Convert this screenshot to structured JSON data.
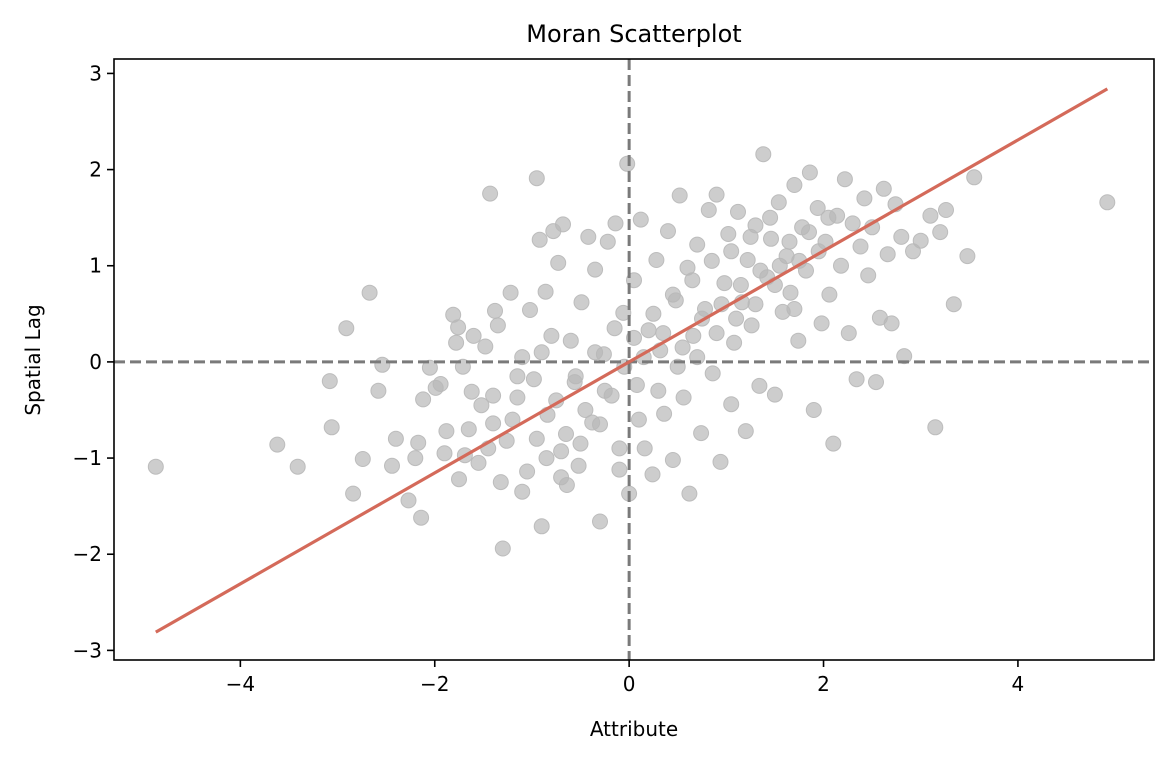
{
  "chart_data": {
    "type": "scatter",
    "title": "Moran Scatterplot",
    "xlabel": "Attribute",
    "ylabel": "Spatial Lag",
    "xlim": [
      -5.3,
      5.4
    ],
    "ylim": [
      -3.1,
      3.15
    ],
    "x_ticks": [
      -4,
      -2,
      0,
      2,
      4
    ],
    "y_ticks": [
      -3,
      -2,
      -1,
      0,
      1,
      2,
      3
    ],
    "x_tick_labels": [
      "−4",
      "−2",
      "0",
      "2",
      "4"
    ],
    "y_tick_labels": [
      "−3",
      "−2",
      "−1",
      "0",
      "1",
      "2",
      "3"
    ],
    "grid": false,
    "reference_lines": {
      "x": 0,
      "y": 0,
      "style": "dashed",
      "color": "#7a7a7a"
    },
    "fit_line": {
      "slope": 0.577,
      "intercept": 0.0,
      "x_range": [
        -4.87,
        4.92
      ],
      "color": "#d46a5a"
    },
    "point_color": "#b8b8b8",
    "points": [
      [
        -4.87,
        -1.09
      ],
      [
        -3.62,
        -0.86
      ],
      [
        -3.41,
        -1.09
      ],
      [
        -3.08,
        -0.2
      ],
      [
        -3.06,
        -0.68
      ],
      [
        -2.91,
        0.35
      ],
      [
        -2.84,
        -1.37
      ],
      [
        -2.74,
        -1.01
      ],
      [
        -2.67,
        0.72
      ],
      [
        -2.58,
        -0.3
      ],
      [
        -2.54,
        -0.03
      ],
      [
        -2.44,
        -1.08
      ],
      [
        -2.4,
        -0.8
      ],
      [
        -2.27,
        -1.44
      ],
      [
        -2.2,
        -1.0
      ],
      [
        -2.17,
        -0.84
      ],
      [
        -2.14,
        -1.62
      ],
      [
        -2.12,
        -0.39
      ],
      [
        -2.05,
        -0.06
      ],
      [
        -1.99,
        -0.27
      ],
      [
        -1.94,
        -0.23
      ],
      [
        -1.88,
        -0.72
      ],
      [
        -1.81,
        0.49
      ],
      [
        -1.78,
        0.2
      ],
      [
        -1.76,
        0.36
      ],
      [
        -1.71,
        -0.05
      ],
      [
        -1.69,
        -0.97
      ],
      [
        -1.62,
        -0.31
      ],
      [
        -1.6,
        0.27
      ],
      [
        -1.52,
        -0.45
      ],
      [
        -1.48,
        0.16
      ],
      [
        -1.43,
        1.75
      ],
      [
        -1.4,
        -0.64
      ],
      [
        -1.38,
        0.53
      ],
      [
        -1.35,
        0.38
      ],
      [
        -1.3,
        -1.94
      ],
      [
        -1.26,
        -0.82
      ],
      [
        -1.22,
        0.72
      ],
      [
        -1.15,
        -0.37
      ],
      [
        -1.1,
        0.05
      ],
      [
        -1.05,
        -1.14
      ],
      [
        -1.02,
        0.54
      ],
      [
        -0.98,
        -0.18
      ],
      [
        -0.95,
        1.91
      ],
      [
        -0.92,
        1.27
      ],
      [
        -0.9,
        -1.71
      ],
      [
        -0.86,
        0.73
      ],
      [
        -0.84,
        -0.55
      ],
      [
        -0.8,
        0.27
      ],
      [
        -0.78,
        1.36
      ],
      [
        -0.73,
        1.03
      ],
      [
        -0.7,
        -0.93
      ],
      [
        -0.68,
        1.43
      ],
      [
        -0.64,
        -1.28
      ],
      [
        -0.6,
        0.22
      ],
      [
        -0.56,
        -0.21
      ],
      [
        -0.52,
        -1.08
      ],
      [
        -0.49,
        0.62
      ],
      [
        -0.42,
        1.3
      ],
      [
        -0.38,
        -0.63
      ],
      [
        -0.35,
        0.96
      ],
      [
        -0.3,
        -1.66
      ],
      [
        -0.26,
        0.08
      ],
      [
        -0.22,
        1.25
      ],
      [
        -0.18,
        -0.35
      ],
      [
        -0.14,
        1.44
      ],
      [
        -0.1,
        -1.12
      ],
      [
        -0.06,
        0.51
      ],
      [
        -0.02,
        2.06
      ],
      [
        0.0,
        -1.37
      ],
      [
        0.05,
        0.85
      ],
      [
        0.08,
        -0.24
      ],
      [
        0.12,
        1.48
      ],
      [
        0.16,
        -0.9
      ],
      [
        0.2,
        0.33
      ],
      [
        0.24,
        -1.17
      ],
      [
        0.28,
        1.06
      ],
      [
        0.32,
        0.12
      ],
      [
        0.36,
        -0.54
      ],
      [
        0.4,
        1.36
      ],
      [
        0.45,
        -1.02
      ],
      [
        0.48,
        0.64
      ],
      [
        0.52,
        1.73
      ],
      [
        0.56,
        -0.37
      ],
      [
        0.6,
        0.98
      ],
      [
        0.62,
        -1.37
      ],
      [
        0.66,
        0.27
      ],
      [
        0.7,
        1.22
      ],
      [
        0.74,
        -0.74
      ],
      [
        0.78,
        0.55
      ],
      [
        0.82,
        1.58
      ],
      [
        0.86,
        -0.12
      ],
      [
        0.9,
        1.74
      ],
      [
        0.94,
        -1.04
      ],
      [
        0.98,
        0.82
      ],
      [
        1.02,
        1.33
      ],
      [
        1.05,
        -0.44
      ],
      [
        1.08,
        0.2
      ],
      [
        1.12,
        1.56
      ],
      [
        1.16,
        0.62
      ],
      [
        1.2,
        -0.72
      ],
      [
        1.22,
        1.06
      ],
      [
        1.26,
        0.38
      ],
      [
        1.3,
        1.42
      ],
      [
        1.34,
        -0.25
      ],
      [
        1.38,
        2.16
      ],
      [
        1.42,
        0.88
      ],
      [
        1.46,
        1.28
      ],
      [
        1.5,
        -0.34
      ],
      [
        1.54,
        1.66
      ],
      [
        1.58,
        0.52
      ],
      [
        1.62,
        1.1
      ],
      [
        1.66,
        0.72
      ],
      [
        1.7,
        1.84
      ],
      [
        1.74,
        0.22
      ],
      [
        1.78,
        1.4
      ],
      [
        1.82,
        0.95
      ],
      [
        1.86,
        1.97
      ],
      [
        1.9,
        -0.5
      ],
      [
        1.94,
        1.6
      ],
      [
        1.98,
        0.4
      ],
      [
        2.02,
        1.25
      ],
      [
        2.06,
        0.7
      ],
      [
        2.1,
        -0.85
      ],
      [
        2.14,
        1.52
      ],
      [
        2.18,
        1.0
      ],
      [
        2.22,
        1.9
      ],
      [
        2.26,
        0.3
      ],
      [
        2.3,
        1.44
      ],
      [
        2.34,
        -0.18
      ],
      [
        2.38,
        1.2
      ],
      [
        2.42,
        1.7
      ],
      [
        2.46,
        0.9
      ],
      [
        2.5,
        1.4
      ],
      [
        2.54,
        -0.21
      ],
      [
        2.58,
        0.46
      ],
      [
        2.62,
        1.8
      ],
      [
        2.66,
        1.12
      ],
      [
        2.7,
        0.4
      ],
      [
        2.74,
        1.64
      ],
      [
        2.8,
        1.3
      ],
      [
        2.83,
        0.06
      ],
      [
        2.92,
        1.15
      ],
      [
        3.0,
        1.26
      ],
      [
        3.1,
        1.52
      ],
      [
        3.15,
        -0.68
      ],
      [
        3.2,
        1.35
      ],
      [
        3.26,
        1.58
      ],
      [
        3.34,
        0.6
      ],
      [
        3.48,
        1.1
      ],
      [
        3.55,
        1.92
      ],
      [
        4.92,
        1.66
      ],
      [
        -1.75,
        -1.22
      ],
      [
        -1.55,
        -1.05
      ],
      [
        -1.45,
        -0.9
      ],
      [
        -1.32,
        -1.25
      ],
      [
        -1.2,
        -0.6
      ],
      [
        -1.1,
        -1.35
      ],
      [
        -0.95,
        -0.8
      ],
      [
        -0.85,
        -1.0
      ],
      [
        -0.75,
        -0.4
      ],
      [
        -0.65,
        -0.75
      ],
      [
        -0.55,
        -0.15
      ],
      [
        -0.45,
        -0.5
      ],
      [
        -0.35,
        0.1
      ],
      [
        -0.25,
        -0.3
      ],
      [
        -0.15,
        0.35
      ],
      [
        -0.05,
        -0.05
      ],
      [
        0.05,
        0.25
      ],
      [
        0.15,
        0.05
      ],
      [
        0.25,
        0.5
      ],
      [
        0.35,
        0.3
      ],
      [
        0.45,
        0.7
      ],
      [
        0.55,
        0.15
      ],
      [
        0.65,
        0.85
      ],
      [
        0.75,
        0.45
      ],
      [
        0.85,
        1.05
      ],
      [
        0.95,
        0.6
      ],
      [
        1.05,
        1.15
      ],
      [
        1.15,
        0.8
      ],
      [
        1.25,
        1.3
      ],
      [
        1.35,
        0.95
      ],
      [
        1.45,
        1.5
      ],
      [
        1.55,
        1.0
      ],
      [
        1.65,
        1.25
      ],
      [
        1.75,
        1.05
      ],
      [
        1.85,
        1.35
      ],
      [
        1.95,
        1.15
      ],
      [
        2.05,
        1.5
      ],
      [
        -1.9,
        -0.95
      ],
      [
        -1.65,
        -0.7
      ],
      [
        -1.4,
        -0.35
      ],
      [
        -1.15,
        -0.15
      ],
      [
        -0.9,
        0.1
      ],
      [
        -0.7,
        -1.2
      ],
      [
        -0.5,
        -0.85
      ],
      [
        -0.3,
        -0.65
      ],
      [
        -0.1,
        -0.9
      ],
      [
        0.1,
        -0.6
      ],
      [
        0.3,
        -0.3
      ],
      [
        0.5,
        -0.05
      ],
      [
        0.7,
        0.05
      ],
      [
        0.9,
        0.3
      ],
      [
        1.1,
        0.45
      ],
      [
        1.3,
        0.6
      ],
      [
        1.5,
        0.8
      ],
      [
        1.7,
        0.55
      ]
    ]
  }
}
